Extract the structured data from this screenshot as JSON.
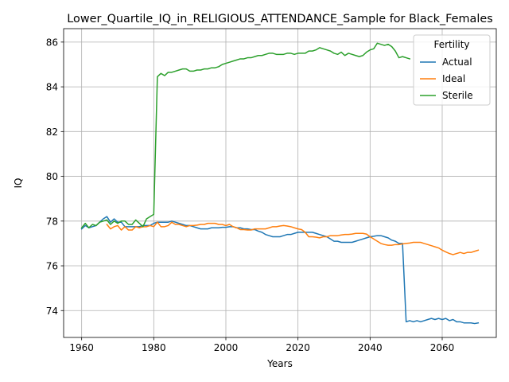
{
  "chart_data": {
    "type": "line",
    "title": "Lower_Quartile_IQ_in_RELIGIOUS_ATTENDANCE_Sample for Black_Females",
    "xlabel": "Years",
    "ylabel": "IQ",
    "xlim": [
      1955,
      2075
    ],
    "ylim": [
      72.8,
      86.6
    ],
    "xticks": [
      1960,
      1980,
      2000,
      2020,
      2040,
      2060
    ],
    "yticks": [
      74,
      76,
      78,
      80,
      82,
      84,
      86
    ],
    "grid": true,
    "legend": {
      "title": "Fertility",
      "placement": "top-right"
    },
    "series": [
      {
        "name": "Actual",
        "color": "#1f77b4",
        "x": [
          1960,
          1961,
          1962,
          1963,
          1964,
          1965,
          1966,
          1967,
          1968,
          1969,
          1970,
          1971,
          1972,
          1973,
          1974,
          1975,
          1976,
          1977,
          1978,
          1979,
          1980,
          1981,
          1982,
          1983,
          1984,
          1985,
          1986,
          1987,
          1988,
          1989,
          1990,
          1991,
          1992,
          1993,
          1994,
          1995,
          1996,
          1997,
          1998,
          1999,
          2000,
          2001,
          2002,
          2003,
          2004,
          2005,
          2006,
          2007,
          2008,
          2009,
          2010,
          2011,
          2012,
          2013,
          2014,
          2015,
          2016,
          2017,
          2018,
          2019,
          2020,
          2021,
          2022,
          2023,
          2024,
          2025,
          2026,
          2027,
          2028,
          2029,
          2030,
          2031,
          2032,
          2033,
          2034,
          2035,
          2036,
          2037,
          2038,
          2039,
          2040,
          2041,
          2042,
          2043,
          2044,
          2045,
          2046,
          2047,
          2048,
          2049,
          2050,
          2051,
          2052,
          2053,
          2054,
          2055,
          2056,
          2057,
          2058,
          2059,
          2060,
          2061,
          2062,
          2063,
          2064,
          2065,
          2066,
          2067,
          2068,
          2069,
          2070
        ],
        "values": [
          77.65,
          77.8,
          77.7,
          77.75,
          77.8,
          77.95,
          78.1,
          78.2,
          77.95,
          78.1,
          77.95,
          77.95,
          77.75,
          77.75,
          77.75,
          77.75,
          77.75,
          77.8,
          77.8,
          77.8,
          77.9,
          77.95,
          77.95,
          77.95,
          77.95,
          78.0,
          77.95,
          77.9,
          77.85,
          77.8,
          77.8,
          77.75,
          77.7,
          77.65,
          77.65,
          77.65,
          77.7,
          77.7,
          77.7,
          77.72,
          77.72,
          77.75,
          77.75,
          77.7,
          77.7,
          77.65,
          77.65,
          77.62,
          77.62,
          77.55,
          77.5,
          77.4,
          77.35,
          77.3,
          77.3,
          77.3,
          77.35,
          77.4,
          77.4,
          77.45,
          77.5,
          77.5,
          77.5,
          77.5,
          77.5,
          77.45,
          77.4,
          77.35,
          77.3,
          77.2,
          77.1,
          77.1,
          77.05,
          77.05,
          77.05,
          77.05,
          77.1,
          77.15,
          77.2,
          77.25,
          77.3,
          77.32,
          77.35,
          77.35,
          77.3,
          77.25,
          77.15,
          77.1,
          77.0,
          77.0,
          73.5,
          73.55,
          73.5,
          73.55,
          73.5,
          73.55,
          73.6,
          73.65,
          73.6,
          73.65,
          73.6,
          73.65,
          73.55,
          73.6,
          73.5,
          73.5,
          73.45,
          73.45,
          73.45,
          73.42,
          73.45
        ]
      },
      {
        "name": "Ideal",
        "color": "#ff7f0e",
        "x": [
          1967,
          1968,
          1969,
          1970,
          1971,
          1972,
          1973,
          1974,
          1975,
          1976,
          1977,
          1978,
          1979,
          1980,
          1981,
          1982,
          1983,
          1984,
          1985,
          1986,
          1987,
          1988,
          1989,
          1990,
          1991,
          1992,
          1993,
          1994,
          1995,
          1996,
          1997,
          1998,
          1999,
          2000,
          2001,
          2002,
          2003,
          2004,
          2005,
          2006,
          2007,
          2008,
          2009,
          2010,
          2011,
          2012,
          2013,
          2014,
          2015,
          2016,
          2017,
          2018,
          2019,
          2020,
          2021,
          2022,
          2023,
          2024,
          2025,
          2026,
          2027,
          2028,
          2029,
          2030,
          2031,
          2032,
          2033,
          2034,
          2035,
          2036,
          2037,
          2038,
          2039,
          2040,
          2041,
          2042,
          2043,
          2044,
          2045,
          2046,
          2047,
          2048,
          2049,
          2050,
          2051,
          2052,
          2053,
          2054,
          2055,
          2056,
          2057,
          2058,
          2059,
          2060,
          2061,
          2062,
          2063,
          2064,
          2065,
          2066,
          2067,
          2068,
          2069,
          2070
        ],
        "values": [
          77.85,
          77.65,
          77.75,
          77.8,
          77.6,
          77.75,
          77.6,
          77.6,
          77.75,
          77.7,
          77.75,
          77.75,
          77.8,
          77.75,
          77.95,
          77.75,
          77.75,
          77.8,
          77.95,
          77.85,
          77.85,
          77.8,
          77.75,
          77.8,
          77.8,
          77.82,
          77.85,
          77.85,
          77.9,
          77.9,
          77.9,
          77.85,
          77.85,
          77.8,
          77.85,
          77.75,
          77.7,
          77.62,
          77.62,
          77.6,
          77.6,
          77.65,
          77.65,
          77.65,
          77.65,
          77.7,
          77.75,
          77.75,
          77.78,
          77.8,
          77.78,
          77.75,
          77.7,
          77.65,
          77.62,
          77.5,
          77.3,
          77.3,
          77.28,
          77.25,
          77.3,
          77.3,
          77.35,
          77.35,
          77.35,
          77.38,
          77.4,
          77.4,
          77.42,
          77.45,
          77.45,
          77.45,
          77.42,
          77.3,
          77.2,
          77.1,
          77.0,
          76.95,
          76.92,
          76.92,
          76.95,
          76.95,
          76.98,
          77.0,
          77.02,
          77.05,
          77.05,
          77.05,
          77.0,
          76.95,
          76.9,
          76.85,
          76.8,
          76.7,
          76.62,
          76.55,
          76.5,
          76.55,
          76.6,
          76.55,
          76.6,
          76.6,
          76.65,
          76.7
        ]
      },
      {
        "name": "Sterile",
        "color": "#2ca02c",
        "x": [
          1960,
          1961,
          1962,
          1963,
          1964,
          1965,
          1966,
          1967,
          1968,
          1969,
          1970,
          1971,
          1972,
          1973,
          1974,
          1975,
          1976,
          1977,
          1978,
          1979,
          1980,
          1981,
          1982,
          1983,
          1984,
          1985,
          1986,
          1987,
          1988,
          1989,
          1990,
          1991,
          1992,
          1993,
          1994,
          1995,
          1996,
          1997,
          1998,
          1999,
          2000,
          2001,
          2002,
          2003,
          2004,
          2005,
          2006,
          2007,
          2008,
          2009,
          2010,
          2011,
          2012,
          2013,
          2014,
          2015,
          2016,
          2017,
          2018,
          2019,
          2020,
          2021,
          2022,
          2023,
          2024,
          2025,
          2026,
          2027,
          2028,
          2029,
          2030,
          2031,
          2032,
          2033,
          2034,
          2035,
          2036,
          2037,
          2038,
          2039,
          2040,
          2041,
          2042,
          2043,
          2044,
          2045,
          2046,
          2047,
          2048,
          2049,
          2050,
          2051
        ],
        "values": [
          77.7,
          77.9,
          77.7,
          77.85,
          77.8,
          77.95,
          78.0,
          78.05,
          77.85,
          78.0,
          77.9,
          78.0,
          78.0,
          77.85,
          77.85,
          78.05,
          77.9,
          77.75,
          78.1,
          78.2,
          78.3,
          84.45,
          84.6,
          84.5,
          84.65,
          84.65,
          84.7,
          84.75,
          84.8,
          84.8,
          84.7,
          84.7,
          84.75,
          84.75,
          84.8,
          84.8,
          84.85,
          84.85,
          84.9,
          85.0,
          85.05,
          85.1,
          85.15,
          85.2,
          85.25,
          85.25,
          85.3,
          85.3,
          85.35,
          85.4,
          85.4,
          85.45,
          85.5,
          85.5,
          85.45,
          85.45,
          85.45,
          85.5,
          85.5,
          85.45,
          85.5,
          85.5,
          85.5,
          85.6,
          85.6,
          85.65,
          85.75,
          85.7,
          85.65,
          85.6,
          85.5,
          85.45,
          85.55,
          85.4,
          85.5,
          85.45,
          85.4,
          85.35,
          85.4,
          85.55,
          85.65,
          85.7,
          85.95,
          85.9,
          85.85,
          85.9,
          85.8,
          85.6,
          85.3,
          85.35,
          85.3,
          85.25
        ]
      }
    ]
  }
}
